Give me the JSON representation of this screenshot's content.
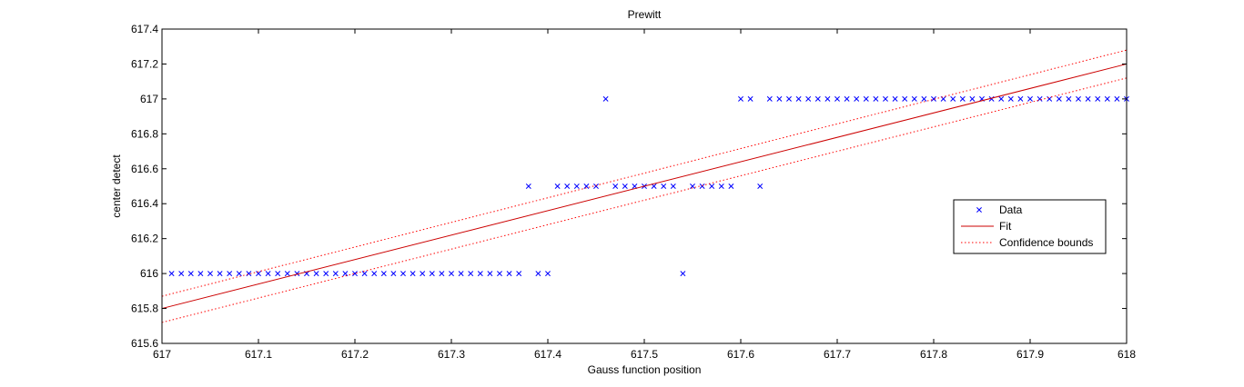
{
  "chart_data": {
    "type": "scatter",
    "title": "Prewitt",
    "xlabel": "Gauss function position",
    "ylabel": "center detect",
    "xlim": [
      617,
      618
    ],
    "ylim": [
      615.6,
      617.4
    ],
    "xticks": [
      "617",
      "617.1",
      "617.2",
      "617.3",
      "617.4",
      "617.5",
      "617.6",
      "617.7",
      "617.8",
      "617.9",
      "618"
    ],
    "yticks": [
      "615.6",
      "615.8",
      "616",
      "616.2",
      "616.4",
      "616.6",
      "616.8",
      "617",
      "617.2",
      "617.4"
    ],
    "grid": false,
    "legend_position": "right",
    "colors": {
      "data": "#0000ff",
      "fit": "#cc0000",
      "bounds": "#ff0000"
    },
    "series": [
      {
        "name": "Data",
        "marker": "x",
        "x": [
          617.01,
          617.02,
          617.03,
          617.04,
          617.05,
          617.06,
          617.07,
          617.08,
          617.09,
          617.1,
          617.11,
          617.12,
          617.13,
          617.14,
          617.15,
          617.16,
          617.17,
          617.18,
          617.19,
          617.2,
          617.21,
          617.22,
          617.23,
          617.24,
          617.25,
          617.26,
          617.27,
          617.28,
          617.29,
          617.3,
          617.31,
          617.32,
          617.33,
          617.34,
          617.35,
          617.36,
          617.37,
          617.38,
          617.39,
          617.4,
          617.41,
          617.42,
          617.43,
          617.44,
          617.45,
          617.46,
          617.47,
          617.48,
          617.49,
          617.5,
          617.51,
          617.52,
          617.53,
          617.54,
          617.55,
          617.56,
          617.57,
          617.58,
          617.59,
          617.6,
          617.61,
          617.62,
          617.63,
          617.64,
          617.65,
          617.66,
          617.67,
          617.68,
          617.69,
          617.7,
          617.71,
          617.72,
          617.73,
          617.74,
          617.75,
          617.76,
          617.77,
          617.78,
          617.79,
          617.8,
          617.81,
          617.82,
          617.83,
          617.84,
          617.85,
          617.86,
          617.87,
          617.88,
          617.89,
          617.9,
          617.91,
          617.92,
          617.93,
          617.94,
          617.95,
          617.96,
          617.97,
          617.98,
          617.99,
          618.0
        ],
        "y": [
          616,
          616,
          616,
          616,
          616,
          616,
          616,
          616,
          616,
          616,
          616,
          616,
          616,
          616,
          616,
          616,
          616,
          616,
          616,
          616,
          616,
          616,
          616,
          616,
          616,
          616,
          616,
          616,
          616,
          616,
          616,
          616,
          616,
          616,
          616,
          616,
          616,
          616.5,
          616,
          616,
          616.5,
          616.5,
          616.5,
          616.5,
          616.5,
          617,
          616.5,
          616.5,
          616.5,
          616.5,
          616.5,
          616.5,
          616.5,
          616,
          616.5,
          616.5,
          616.5,
          616.5,
          616.5,
          617,
          617,
          616.5,
          617,
          617,
          617,
          617,
          617,
          617,
          617,
          617,
          617,
          617,
          617,
          617,
          617,
          617,
          617,
          617,
          617,
          617,
          617,
          617,
          617,
          617,
          617,
          617,
          617,
          617,
          617,
          617,
          617,
          617,
          617,
          617,
          617,
          617,
          617,
          617,
          617,
          617
        ]
      },
      {
        "name": "Fit",
        "x": [
          617,
          618
        ],
        "y": [
          615.8,
          617.2
        ]
      },
      {
        "name": "Confidence bounds",
        "x": [
          617,
          618
        ],
        "y_upper": [
          615.87,
          617.28
        ],
        "y_lower": [
          615.72,
          617.12
        ]
      }
    ]
  }
}
